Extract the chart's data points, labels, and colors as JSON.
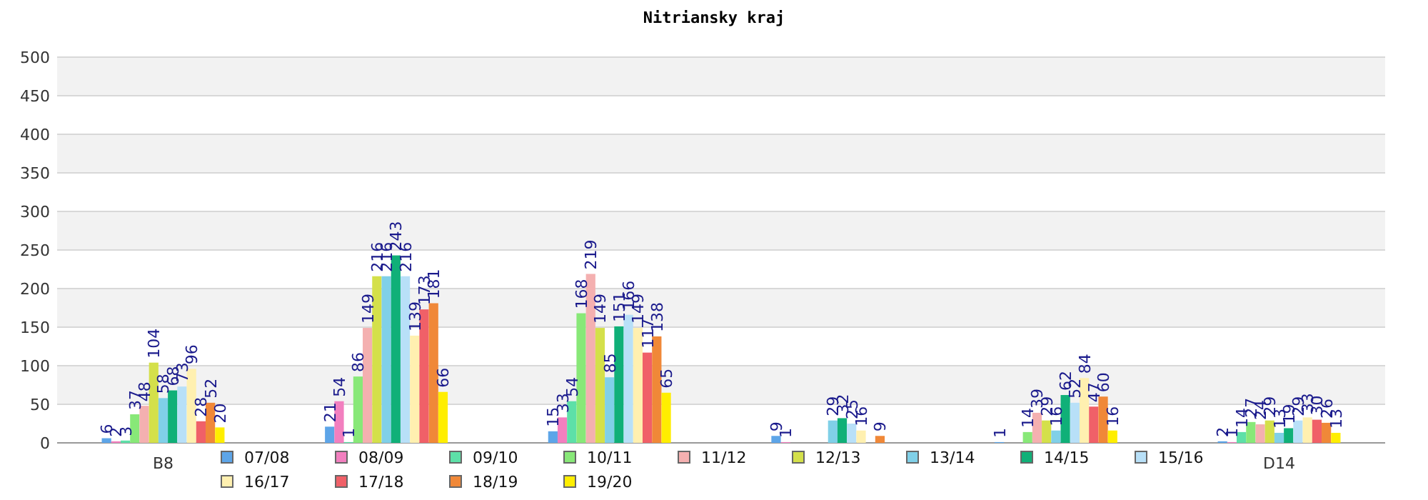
{
  "chart_data": {
    "type": "bar",
    "title": "Nitriansky kraj",
    "categories": [
      "B8",
      null,
      null,
      null,
      null,
      "D14"
    ],
    "series": [
      {
        "name": "07/08",
        "color": "#5da5e8",
        "values": [
          6,
          21,
          15,
          9,
          1,
          2
        ]
      },
      {
        "name": "08/09",
        "color": "#f27fbf",
        "values": [
          2,
          54,
          33,
          1,
          null,
          1
        ]
      },
      {
        "name": "09/10",
        "color": "#5de0a8",
        "values": [
          3,
          1,
          54,
          null,
          null,
          14
        ]
      },
      {
        "name": "10/11",
        "color": "#88e878",
        "values": [
          37,
          86,
          168,
          null,
          14,
          27
        ]
      },
      {
        "name": "11/12",
        "color": "#f4b0b0",
        "values": [
          48,
          149,
          219,
          null,
          39,
          24
        ]
      },
      {
        "name": "12/13",
        "color": "#d4e04a",
        "values": [
          104,
          216,
          149,
          null,
          29,
          29
        ]
      },
      {
        "name": "13/14",
        "color": "#80d0e8",
        "values": [
          58,
          216,
          85,
          29,
          16,
          13
        ]
      },
      {
        "name": "14/15",
        "color": "#10b078",
        "values": [
          68,
          243,
          151,
          32,
          62,
          19
        ]
      },
      {
        "name": "15/16",
        "color": "#b8e0f8",
        "values": [
          73,
          216,
          166,
          25,
          52,
          29
        ]
      },
      {
        "name": "16/17",
        "color": "#fff0b0",
        "values": [
          96,
          139,
          149,
          16,
          84,
          33
        ]
      },
      {
        "name": "17/18",
        "color": "#f06068",
        "values": [
          28,
          173,
          117,
          null,
          47,
          30
        ]
      },
      {
        "name": "18/19",
        "color": "#f08838",
        "values": [
          52,
          181,
          138,
          9,
          60,
          26
        ]
      },
      {
        "name": "19/20",
        "color": "#ffee00",
        "values": [
          20,
          66,
          65,
          null,
          16,
          13
        ]
      }
    ],
    "ylim": [
      0,
      500
    ],
    "yticks": [
      0,
      50,
      100,
      150,
      200,
      250,
      300,
      350,
      400,
      450,
      500
    ],
    "grid": "y",
    "legend": "bottom",
    "data_labels": true
  }
}
